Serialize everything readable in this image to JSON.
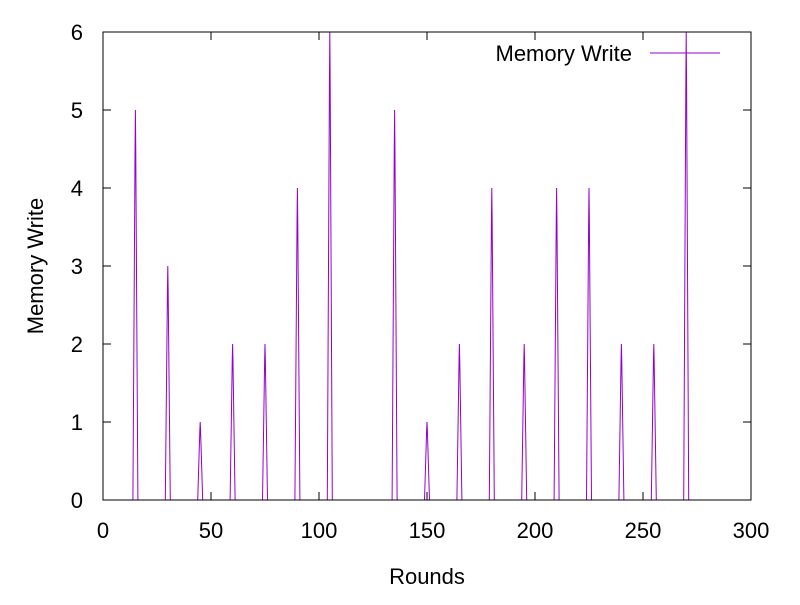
{
  "chart_data": {
    "type": "line",
    "title": "",
    "xlabel": "Rounds",
    "ylabel": "Memory Write",
    "xlim": [
      0,
      300
    ],
    "ylim": [
      0,
      6
    ],
    "xticks": [
      0,
      50,
      100,
      150,
      200,
      250,
      300
    ],
    "yticks": [
      0,
      1,
      2,
      3,
      4,
      5,
      6
    ],
    "x_tick_labels": [
      "0",
      "50",
      "100",
      "150",
      "200",
      "250",
      "300"
    ],
    "y_tick_labels": [
      "0",
      "1",
      "2",
      "3",
      "4",
      "5",
      "6"
    ],
    "grid": false,
    "legend_position": "top-right",
    "series": [
      {
        "name": "Memory Write",
        "color": "#9400d3",
        "x": [
          15,
          30,
          45,
          60,
          75,
          90,
          105,
          135,
          150,
          165,
          180,
          195,
          210,
          225,
          240,
          255,
          270
        ],
        "y": [
          5,
          3,
          1,
          2,
          2,
          4,
          6,
          5,
          1,
          2,
          4,
          2,
          4,
          4,
          2,
          2,
          6
        ]
      }
    ]
  },
  "colors": {
    "series": "#9400d3",
    "axis": "#000000",
    "background": "#ffffff"
  }
}
